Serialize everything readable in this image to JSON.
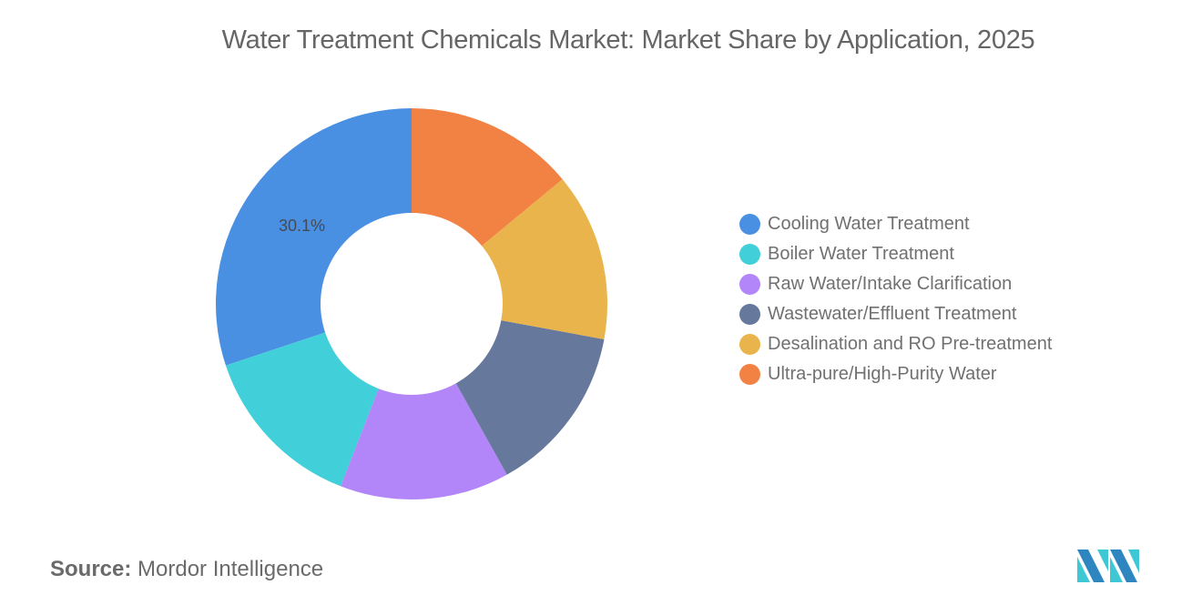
{
  "header": {
    "title": "Water Treatment Chemicals Market: Market Share by Application, 2025"
  },
  "legend": {
    "items": [
      {
        "label": "Cooling Water Treatment",
        "color": "#4a90e2"
      },
      {
        "label": "Boiler Water Treatment",
        "color": "#41cfd9"
      },
      {
        "label": "Raw Water/Intake Clarification",
        "color": "#b286f8"
      },
      {
        "label": "Wastewater/Effluent Treatment",
        "color": "#66789c"
      },
      {
        "label": "Desalination and RO Pre-treatment",
        "color": "#eab44c"
      },
      {
        "label": "Ultra-pure/High-Purity Water",
        "color": "#f28244"
      }
    ]
  },
  "data_label": {
    "text": "30.1%"
  },
  "footer": {
    "source_key": "Source:",
    "source_value": "Mordor Intelligence"
  },
  "chart_data": {
    "type": "pie",
    "variant": "donut",
    "title": "Water Treatment Chemicals Market: Market Share by Application, 2025",
    "categories": [
      "Cooling Water Treatment",
      "Boiler Water Treatment",
      "Raw Water/Intake Clarification",
      "Wastewater/Effluent Treatment",
      "Desalination and RO Pre-treatment",
      "Ultra-pure/High-Purity Water"
    ],
    "values": [
      30.1,
      14.0,
      14.0,
      14.0,
      13.9,
      14.0
    ],
    "unit": "%",
    "colors": [
      "#4a90e2",
      "#41cfd9",
      "#b286f8",
      "#66789c",
      "#eab44c",
      "#f28244"
    ],
    "labeled_values": {
      "Cooling Water Treatment": "30.1%"
    },
    "direction": "counterclockwise from 12 o'clock",
    "legend_position": "right",
    "source": "Mordor Intelligence"
  }
}
